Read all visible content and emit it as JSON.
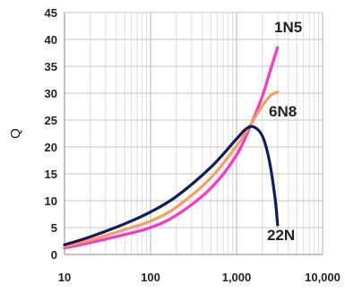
{
  "chart_data": {
    "type": "line",
    "title": "",
    "xlabel": "",
    "ylabel": "Q",
    "x_scale": "log",
    "xlim": [
      10,
      10000
    ],
    "ylim": [
      0,
      45
    ],
    "grid": true,
    "x_ticks": [
      10,
      100,
      1000,
      10000
    ],
    "x_tick_labels": [
      "10",
      "100",
      "1,000",
      "10,000"
    ],
    "y_ticks": [
      0,
      5,
      10,
      15,
      20,
      25,
      30,
      35,
      40,
      45
    ],
    "y_tick_labels": [
      "0",
      "5",
      "10",
      "15",
      "20",
      "25",
      "30",
      "35",
      "40",
      "45"
    ],
    "series": [
      {
        "name": "1N5",
        "color": "#ff33cc",
        "x": [
          10,
          20,
          50,
          100,
          200,
          500,
          1000,
          1500,
          2000,
          2500,
          3000
        ],
        "y": [
          1.2,
          2.2,
          3.7,
          5.0,
          7.3,
          12.3,
          18.5,
          24.5,
          29.5,
          34.5,
          38.5
        ]
      },
      {
        "name": "6N8",
        "color": "#f5a05a",
        "x": [
          10,
          20,
          50,
          100,
          200,
          500,
          1000,
          1500,
          2000,
          2500,
          3000
        ],
        "y": [
          1.5,
          2.7,
          4.6,
          6.2,
          8.8,
          14.2,
          20.2,
          24.5,
          27.7,
          29.6,
          30.2
        ]
      },
      {
        "name": "22N",
        "color": "#0d1e5e",
        "x": [
          10,
          20,
          50,
          100,
          200,
          500,
          1000,
          1300,
          1600,
          2000,
          2400,
          2800,
          3000
        ],
        "y": [
          1.8,
          3.3,
          5.7,
          7.9,
          10.8,
          16.2,
          21.5,
          23.4,
          23.7,
          22.0,
          17.5,
          10.5,
          5.5
        ]
      }
    ]
  }
}
